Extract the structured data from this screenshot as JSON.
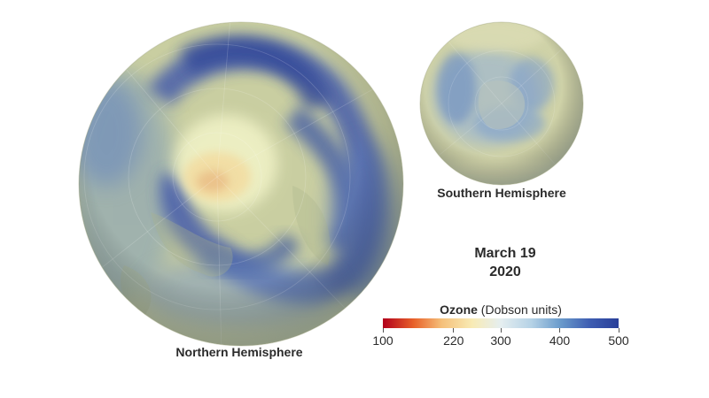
{
  "northern_label": "Northern Hemisphere",
  "southern_label": "Southern Hemisphere",
  "date": {
    "line1": "March 19",
    "line2": "2020"
  },
  "legend": {
    "title_bold": "Ozone",
    "title_rest": " (Dobson units)",
    "ticks": [
      "100",
      "220",
      "300",
      "400",
      "500"
    ],
    "tick_values": [
      100,
      220,
      300,
      400,
      500
    ],
    "range": [
      100,
      500
    ],
    "colors": [
      "#b2001c",
      "#e8612a",
      "#f5c07a",
      "#f8ebb5",
      "#e5eef0",
      "#b5d2e6",
      "#6b9ccc",
      "#3d5cb1",
      "#293f99"
    ]
  }
}
